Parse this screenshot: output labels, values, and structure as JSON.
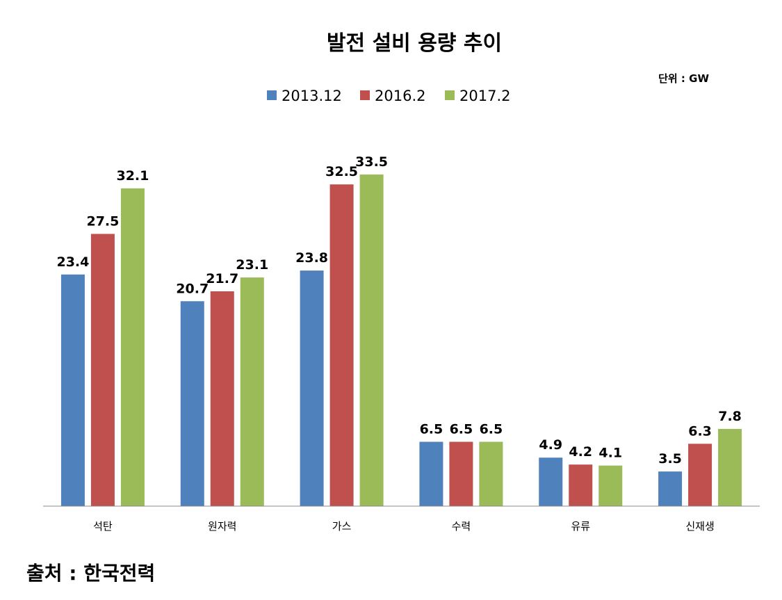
{
  "chart_data": {
    "type": "bar",
    "title": "발전 설비 용량 추이",
    "unit_note": "단위 : GW",
    "categories": [
      "석탄",
      "원자력",
      "가스",
      "수력",
      "유류",
      "신재생"
    ],
    "series": [
      {
        "name": "2013.12",
        "color": "#4F81BD",
        "values": [
          23.4,
          20.7,
          23.8,
          6.5,
          4.9,
          3.5
        ]
      },
      {
        "name": "2016.2",
        "color": "#C0504D",
        "values": [
          27.5,
          21.7,
          32.5,
          6.5,
          4.2,
          6.3
        ]
      },
      {
        "name": "2017.2",
        "color": "#9BBB59",
        "values": [
          32.1,
          23.1,
          33.5,
          6.5,
          4.1,
          7.8
        ]
      }
    ],
    "ylim": [
      0,
      33.5
    ],
    "grid": false,
    "legend_position": "top"
  },
  "source": "출처 : 한국전력"
}
